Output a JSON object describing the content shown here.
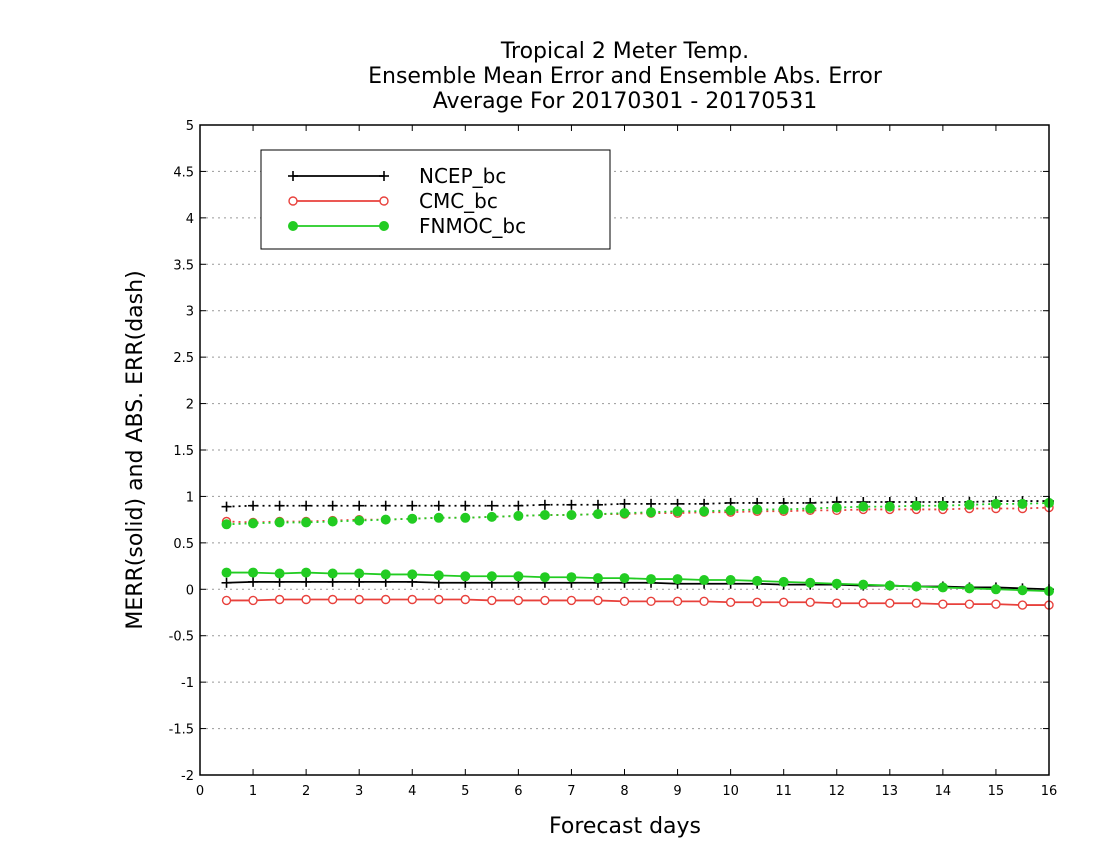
{
  "chart_data": {
    "type": "line",
    "title": [
      "Tropical 2 Meter Temp.",
      "Ensemble Mean Error and Ensemble Abs. Error",
      "Average For 20170301 - 20170531"
    ],
    "xlabel": "Forecast days",
    "ylabel": "MERR(solid) and ABS. ERR(dash)",
    "xlim": [
      0,
      16
    ],
    "ylim": [
      -2,
      5
    ],
    "xticks": [
      0,
      1,
      2,
      3,
      4,
      5,
      6,
      7,
      8,
      9,
      10,
      11,
      12,
      13,
      14,
      15,
      16
    ],
    "yticks": [
      -2,
      -1.5,
      -1,
      -0.5,
      0,
      0.5,
      1,
      1.5,
      2,
      2.5,
      3,
      3.5,
      4,
      4.5,
      5
    ],
    "ytick_labels": [
      "-2",
      "-1.5",
      "-1",
      "-0.5",
      "0",
      "0.5",
      "1",
      "1.5",
      "2",
      "2.5",
      "3",
      "3.5",
      "4",
      "4.5",
      "5"
    ],
    "grid": true,
    "legend_position": "top-left",
    "x": [
      0.5,
      1,
      1.5,
      2,
      2.5,
      3,
      3.5,
      4,
      4.5,
      5,
      5.5,
      6,
      6.5,
      7,
      7.5,
      8,
      8.5,
      9,
      9.5,
      10,
      10.5,
      11,
      11.5,
      12,
      12.5,
      13,
      13.5,
      14,
      14.5,
      15,
      15.5,
      16
    ],
    "series": [
      {
        "name": "NCEP_bc",
        "color": "#000000",
        "marker": "plus",
        "merr": [
          0.07,
          0.08,
          0.08,
          0.08,
          0.08,
          0.08,
          0.08,
          0.08,
          0.07,
          0.07,
          0.07,
          0.07,
          0.07,
          0.07,
          0.07,
          0.07,
          0.07,
          0.06,
          0.06,
          0.06,
          0.06,
          0.05,
          0.05,
          0.05,
          0.04,
          0.04,
          0.03,
          0.03,
          0.02,
          0.02,
          0.01,
          0.0
        ],
        "abserr": [
          0.89,
          0.9,
          0.9,
          0.9,
          0.9,
          0.9,
          0.9,
          0.9,
          0.9,
          0.9,
          0.9,
          0.9,
          0.91,
          0.91,
          0.91,
          0.92,
          0.92,
          0.92,
          0.92,
          0.93,
          0.93,
          0.93,
          0.93,
          0.94,
          0.94,
          0.94,
          0.94,
          0.94,
          0.94,
          0.95,
          0.95,
          0.95
        ]
      },
      {
        "name": "CMC_bc",
        "color": "#e8413c",
        "marker": "circle-open",
        "merr": [
          -0.12,
          -0.12,
          -0.11,
          -0.11,
          -0.11,
          -0.11,
          -0.11,
          -0.11,
          -0.11,
          -0.11,
          -0.12,
          -0.12,
          -0.12,
          -0.12,
          -0.12,
          -0.13,
          -0.13,
          -0.13,
          -0.13,
          -0.14,
          -0.14,
          -0.14,
          -0.14,
          -0.15,
          -0.15,
          -0.15,
          -0.15,
          -0.16,
          -0.16,
          -0.16,
          -0.17,
          -0.17
        ],
        "abserr": [
          0.73,
          0.72,
          0.73,
          0.73,
          0.74,
          0.75,
          0.75,
          0.76,
          0.77,
          0.77,
          0.78,
          0.79,
          0.8,
          0.8,
          0.81,
          0.81,
          0.82,
          0.82,
          0.83,
          0.83,
          0.84,
          0.84,
          0.85,
          0.85,
          0.86,
          0.86,
          0.86,
          0.86,
          0.87,
          0.87,
          0.87,
          0.88
        ]
      },
      {
        "name": "FNMOC_bc",
        "color": "#22cc22",
        "marker": "circle-filled",
        "merr": [
          0.18,
          0.18,
          0.17,
          0.18,
          0.17,
          0.17,
          0.16,
          0.16,
          0.15,
          0.14,
          0.14,
          0.14,
          0.13,
          0.13,
          0.12,
          0.12,
          0.11,
          0.11,
          0.1,
          0.1,
          0.09,
          0.08,
          0.07,
          0.06,
          0.05,
          0.04,
          0.03,
          0.02,
          0.01,
          0.0,
          -0.01,
          -0.02
        ],
        "abserr": [
          0.7,
          0.71,
          0.72,
          0.72,
          0.73,
          0.74,
          0.75,
          0.76,
          0.77,
          0.77,
          0.78,
          0.79,
          0.8,
          0.8,
          0.81,
          0.82,
          0.83,
          0.84,
          0.84,
          0.85,
          0.86,
          0.86,
          0.87,
          0.88,
          0.89,
          0.89,
          0.9,
          0.9,
          0.91,
          0.92,
          0.92,
          0.93
        ]
      }
    ]
  }
}
